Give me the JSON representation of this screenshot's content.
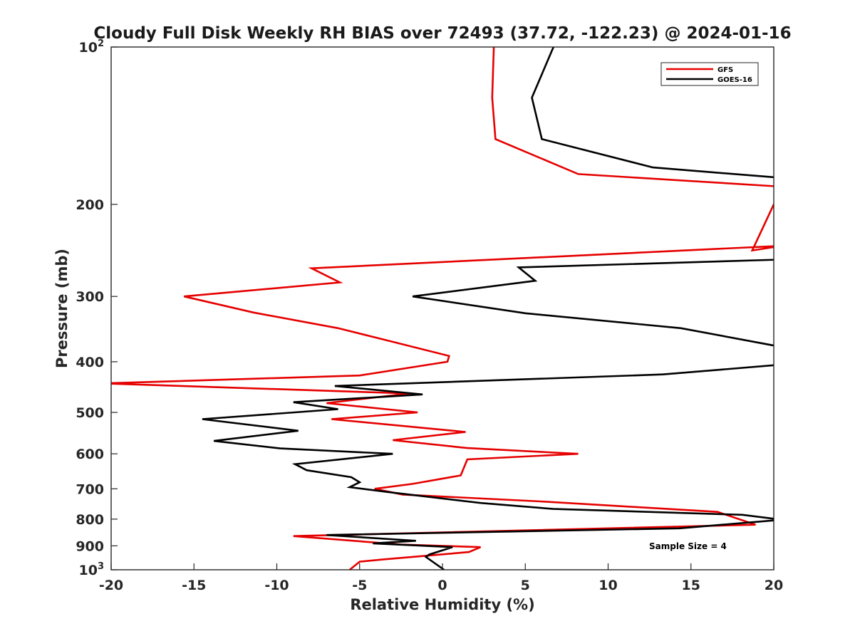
{
  "chart_data": {
    "type": "line",
    "title": "Cloudy Full Disk Weekly RH BIAS over 72493 (37.72, -122.23) @ 2024-01-16",
    "xlabel": "Relative Humidity (%)",
    "ylabel": "Pressure (mb)",
    "xlim": [
      -20,
      20
    ],
    "ylim": [
      100,
      1000
    ],
    "y_scale": "log",
    "y_reversed": true,
    "x_ticks": [
      "-20",
      "-15",
      "-10",
      "-5",
      "0",
      "5",
      "10",
      "15",
      "20"
    ],
    "y_ticks": [
      {
        "value": 100,
        "base": "10",
        "exp": "2"
      },
      {
        "value": 200,
        "label": "200"
      },
      {
        "value": 300,
        "label": "300"
      },
      {
        "value": 400,
        "label": "400"
      },
      {
        "value": 500,
        "label": "500"
      },
      {
        "value": 600,
        "label": "600"
      },
      {
        "value": 700,
        "label": "700"
      },
      {
        "value": 800,
        "label": "800"
      },
      {
        "value": 900,
        "label": "900"
      },
      {
        "value": 1000,
        "base": "10",
        "exp": "3"
      }
    ],
    "legend_position": "top-right",
    "annotation": "Sample Size = 4",
    "grid": false,
    "series": [
      {
        "name": "GFS",
        "color": "#e60000",
        "points": [
          [
            3.1,
            100
          ],
          [
            3.0,
            125
          ],
          [
            3.2,
            150
          ],
          [
            8.2,
            175
          ],
          [
            20.5,
            185
          ],
          [
            18.7,
            245
          ],
          [
            20.5,
            240
          ],
          [
            -7.9,
            265
          ],
          [
            -6.2,
            282
          ],
          [
            -15.6,
            300
          ],
          [
            -11.4,
            322
          ],
          [
            -6.3,
            345
          ],
          [
            -3.5,
            363
          ],
          [
            0.4,
            390
          ],
          [
            0.3,
            400
          ],
          [
            -5.0,
            425
          ],
          [
            -20.5,
            440
          ],
          [
            -2.0,
            460
          ],
          [
            -7.0,
            480
          ],
          [
            -1.5,
            500
          ],
          [
            -6.7,
            515
          ],
          [
            1.4,
            545
          ],
          [
            -3.0,
            565
          ],
          [
            1.5,
            585
          ],
          [
            8.2,
            600
          ],
          [
            1.5,
            615
          ],
          [
            1.1,
            660
          ],
          [
            -1.8,
            685
          ],
          [
            -4.1,
            700
          ],
          [
            -2.4,
            718
          ],
          [
            5.9,
            740
          ],
          [
            16.6,
            775
          ],
          [
            18.9,
            820
          ],
          [
            -9.0,
            862
          ],
          [
            -2.5,
            895
          ],
          [
            2.3,
            905
          ],
          [
            1.6,
            925
          ],
          [
            -3.5,
            955
          ],
          [
            -5.0,
            965
          ],
          [
            -5.6,
            1000
          ]
        ]
      },
      {
        "name": "GOES-16",
        "color": "#000000",
        "points": [
          [
            6.7,
            100
          ],
          [
            5.4,
            125
          ],
          [
            6.0,
            150
          ],
          [
            12.7,
            170
          ],
          [
            20.5,
            178
          ],
          [
            20.5,
            255
          ],
          [
            4.6,
            264
          ],
          [
            5.6,
            280
          ],
          [
            -1.8,
            300
          ],
          [
            5.0,
            323
          ],
          [
            14.4,
            345
          ],
          [
            20.5,
            375
          ],
          [
            20.5,
            405
          ],
          [
            13.3,
            423
          ],
          [
            -6.5,
            445
          ],
          [
            -1.2,
            462
          ],
          [
            -9.0,
            478
          ],
          [
            -6.3,
            493
          ],
          [
            -14.5,
            515
          ],
          [
            -8.7,
            542
          ],
          [
            -13.8,
            567
          ],
          [
            -9.8,
            586
          ],
          [
            -3.0,
            600
          ],
          [
            -8.9,
            628
          ],
          [
            -8.2,
            645
          ],
          [
            -5.5,
            665
          ],
          [
            -5.0,
            680
          ],
          [
            -5.6,
            695
          ],
          [
            -3.3,
            710
          ],
          [
            2.3,
            745
          ],
          [
            6.7,
            765
          ],
          [
            18.1,
            785
          ],
          [
            20.5,
            802
          ],
          [
            14.3,
            833
          ],
          [
            -7.0,
            858
          ],
          [
            -1.6,
            880
          ],
          [
            -4.2,
            890
          ],
          [
            0.6,
            905
          ],
          [
            -0.8,
            935
          ],
          [
            -1.0,
            945
          ],
          [
            0.1,
            1000
          ]
        ]
      }
    ]
  }
}
